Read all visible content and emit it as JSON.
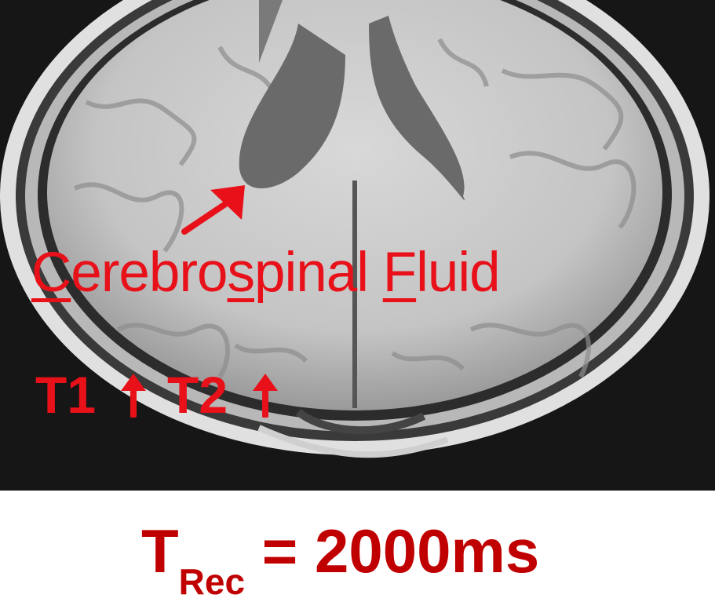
{
  "annotation": {
    "csf_parts": [
      {
        "text": "C",
        "underline": true
      },
      {
        "text": "erebro",
        "underline": false
      },
      {
        "text": "s",
        "underline": true
      },
      {
        "text": "pinal ",
        "underline": false
      },
      {
        "text": "F",
        "underline": true
      },
      {
        "text": "luid",
        "underline": false
      }
    ],
    "t1_label": "T1",
    "t2_label": "T2",
    "color": "#e8111a"
  },
  "formula": {
    "symbol": "T",
    "subscript": "Rec",
    "equals_value": " = 2000ms",
    "color": "#c00000"
  },
  "icons": [
    "pointer-arrow-icon",
    "up-arrow-icon"
  ]
}
